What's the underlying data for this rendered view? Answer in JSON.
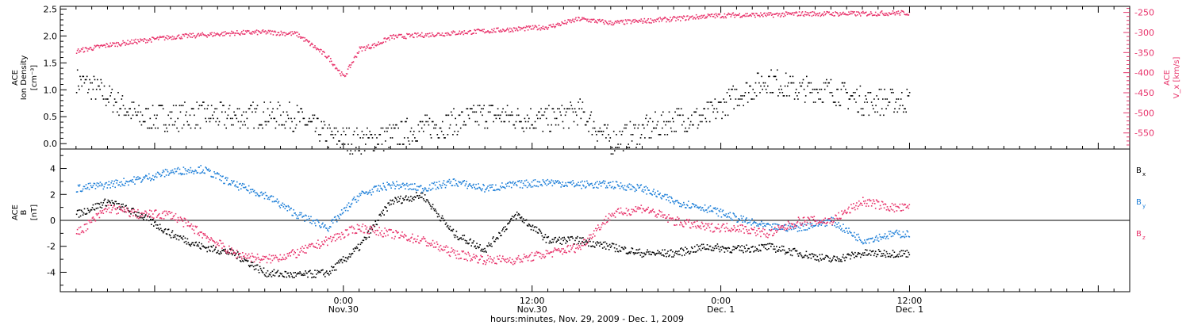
{
  "colors": {
    "black": "#000000",
    "pink": "#e8336b",
    "blue": "#1e7fd8"
  },
  "chart_data": [
    {
      "type": "scatter",
      "ylabel_lines": [
        "ACE",
        "Ion Density"
      ],
      "ylabel_unit": "[cm⁻³]",
      "right_label": "V_x [km/s]",
      "right_label_prefix": "ACE",
      "ylim": [
        -0.1,
        2.55
      ],
      "ylim_right": [
        -590,
        -235
      ],
      "yticks": [
        "0.0",
        "0.5",
        "1.0",
        "1.5",
        "2.0",
        "2.5"
      ],
      "ytick_values": [
        0.0,
        0.5,
        1.0,
        1.5,
        2.0,
        2.5
      ],
      "yticks_right": [
        "-250",
        "-300",
        "-350",
        "-400",
        "-450",
        "-500",
        "-550"
      ],
      "ytick_right_values": [
        -250,
        -300,
        -350,
        -400,
        -450,
        -500,
        -550
      ],
      "series": [
        {
          "name": "Ion Density",
          "axis": "left",
          "color": "#000000",
          "x_hours": [
            -17,
            -15,
            -13,
            -11,
            -9,
            -7,
            -5,
            -3,
            -1,
            1,
            3,
            5,
            7,
            9,
            11,
            13,
            15,
            17,
            19,
            21,
            23,
            25,
            27,
            29,
            31,
            33,
            35
          ],
          "values": [
            1.2,
            0.9,
            0.5,
            0.5,
            0.55,
            0.5,
            0.55,
            0.5,
            0.15,
            0.05,
            0.15,
            0.3,
            0.4,
            0.55,
            0.5,
            0.45,
            0.6,
            0.05,
            0.25,
            0.45,
            0.5,
            0.9,
            1.2,
            1.0,
            1.0,
            0.8,
            0.8
          ],
          "spread": 0.25
        },
        {
          "name": "Vx",
          "axis": "right",
          "color": "#e8336b",
          "x_hours": [
            -17,
            -15,
            -13,
            -11,
            -9,
            -7,
            -5,
            -3,
            -1,
            0,
            1,
            2,
            3,
            5,
            7,
            9,
            11,
            13,
            15,
            17,
            19,
            21,
            23,
            25,
            27,
            29,
            31,
            33,
            35
          ],
          "values": [
            -345,
            -330,
            -320,
            -310,
            -305,
            -300,
            -298,
            -302,
            -360,
            -410,
            -340,
            -330,
            -310,
            -305,
            -300,
            -295,
            -290,
            -285,
            -265,
            -275,
            -270,
            -265,
            -258,
            -255,
            -255,
            -252,
            -252,
            -252,
            -250
          ],
          "spread": 6
        }
      ]
    },
    {
      "type": "scatter",
      "ylabel_lines": [
        "ACE",
        "B"
      ],
      "ylabel_unit": "[nT]",
      "ylim": [
        -5.5,
        5.5
      ],
      "yticks": [
        "4",
        "2",
        "0",
        "-2",
        "-4"
      ],
      "ytick_values": [
        4,
        2,
        0,
        -2,
        -4
      ],
      "zero_line": true,
      "legend": [
        "B_x",
        "B_y",
        "B_z"
      ],
      "series": [
        {
          "name": "Bx",
          "color": "#000000",
          "x_hours": [
            -17,
            -15,
            -13,
            -11,
            -9,
            -7,
            -5,
            -3,
            -1,
            1,
            3,
            5,
            7,
            9,
            11,
            13,
            15,
            17,
            19,
            21,
            23,
            25,
            27,
            29,
            31,
            33,
            35
          ],
          "values": [
            0.5,
            1.5,
            0.5,
            -1.0,
            -2.0,
            -2.5,
            -4.0,
            -4.2,
            -4.0,
            -2.0,
            1.5,
            2.0,
            -1.0,
            -2.2,
            0.5,
            -1.5,
            -1.5,
            -2.0,
            -2.5,
            -2.5,
            -2.0,
            -2.2,
            -2.0,
            -2.5,
            -3.0,
            -2.5,
            -2.5
          ],
          "spread": 0.3
        },
        {
          "name": "By",
          "color": "#1e7fd8",
          "x_hours": [
            -17,
            -15,
            -13,
            -11,
            -9,
            -7,
            -5,
            -3,
            -1,
            1,
            3,
            5,
            7,
            9,
            11,
            13,
            15,
            17,
            19,
            21,
            23,
            25,
            27,
            29,
            31,
            33,
            35
          ],
          "values": [
            2.5,
            2.8,
            3.2,
            3.8,
            4.0,
            2.8,
            2.0,
            0.5,
            -0.5,
            2.0,
            2.8,
            2.5,
            3.0,
            2.5,
            2.8,
            3.0,
            2.8,
            2.8,
            2.5,
            1.5,
            1.0,
            0.2,
            -0.5,
            -0.5,
            0.0,
            -1.5,
            -1.0
          ],
          "spread": 0.3
        },
        {
          "name": "Bz",
          "color": "#e8336b",
          "x_hours": [
            -17,
            -15,
            -13,
            -11,
            -9,
            -7,
            -5,
            -3,
            -1,
            1,
            3,
            5,
            7,
            9,
            11,
            13,
            15,
            17,
            19,
            21,
            23,
            25,
            27,
            29,
            31,
            33,
            35
          ],
          "values": [
            -1.0,
            1.0,
            0.5,
            0.5,
            -1.0,
            -2.5,
            -3.0,
            -2.5,
            -1.5,
            -0.5,
            -1.0,
            -1.5,
            -2.5,
            -3.0,
            -3.0,
            -2.5,
            -2.0,
            0.5,
            1.0,
            0.0,
            -0.5,
            -0.5,
            -1.0,
            0.0,
            0.0,
            1.5,
            1.0
          ],
          "spread": 0.35
        }
      ]
    }
  ],
  "x_axis": {
    "title": "hours:minutes, Nov. 29, 2009 - Dec. 1, 2009",
    "xlim_hours": [
      -18,
      50
    ],
    "ticks": [
      {
        "hour": 0,
        "time": "0:00",
        "date": "Nov.30"
      },
      {
        "hour": 12,
        "time": "12:00",
        "date": "Nov.30"
      },
      {
        "hour": 24,
        "time": "0:00",
        "date": "Dec. 1"
      },
      {
        "hour": 36,
        "time": "12:00",
        "date": "Dec. 1"
      }
    ],
    "minor_every_hours": 1
  }
}
